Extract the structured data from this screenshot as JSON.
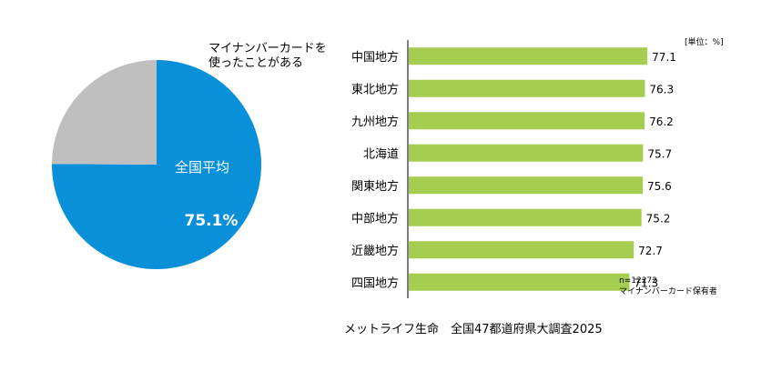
{
  "chart_data": [
    {
      "type": "pie",
      "annotation_lines": [
        "マイナンバーカードを",
        "使ったことがある"
      ],
      "center_label": "全国平均",
      "value_label": "75.1%",
      "slices": [
        {
          "label": "使ったことがある",
          "value": 75.1,
          "color": "#0A8FD9"
        },
        {
          "label": "",
          "value": 24.9,
          "color": "#BFBFBF"
        }
      ]
    },
    {
      "type": "bar",
      "orientation": "horizontal",
      "categories": [
        "中国地方",
        "東北地方",
        "九州地方",
        "北海道",
        "関東地方",
        "中部地方",
        "近畿地方",
        "四国地方"
      ],
      "values": [
        77.1,
        76.3,
        76.2,
        75.7,
        75.6,
        75.2,
        72.7,
        71.3
      ],
      "value_labels": [
        "77.1",
        "76.3",
        "76.2",
        "75.7",
        "75.6",
        "75.2",
        "72.7",
        "71.3"
      ],
      "bar_color": "#A5CD50",
      "unit_label": "[単位：%]",
      "note_lines": [
        "n=12272",
        "マイナンバーカード保有者"
      ],
      "xlim": [
        0,
        100
      ]
    }
  ],
  "source": "メットライフ生命　全国47都道府県大調査2025"
}
